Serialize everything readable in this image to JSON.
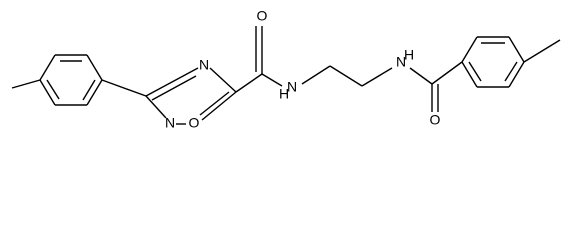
{
  "atoms": [
    {
      "label": "N"
    },
    {
      "label": "O"
    },
    {
      "label": "N"
    },
    {
      "label": "O"
    },
    {
      "label": "N",
      "hydrogen": "H"
    },
    {
      "label": "N",
      "hydrogen": "H"
    },
    {
      "label": "O"
    }
  ]
}
